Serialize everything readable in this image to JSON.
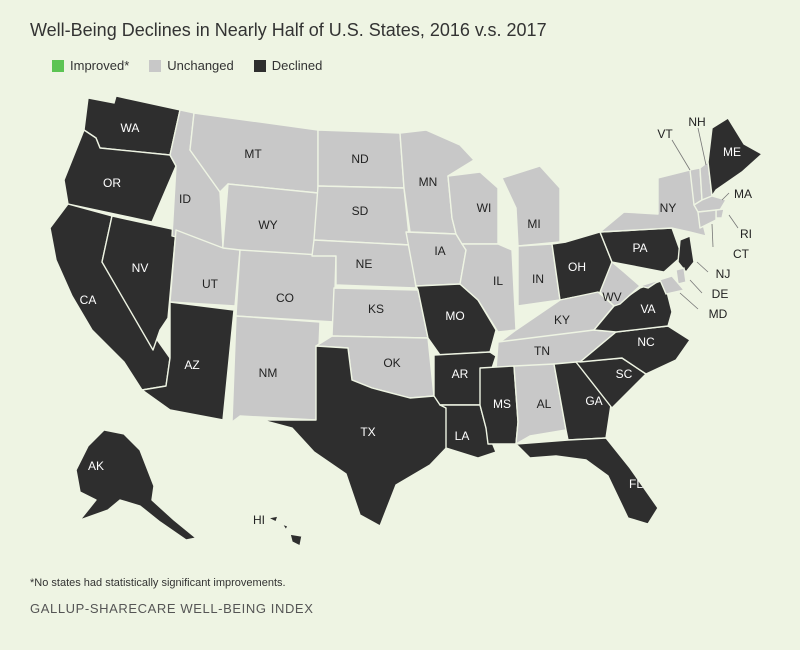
{
  "title": "Well-Being Declines in Nearly Half of U.S. States, 2016 v.s. 2017",
  "legend": [
    {
      "label": "Improved*",
      "color": "#5cc453"
    },
    {
      "label": "Unchanged",
      "color": "#c8c8c8"
    },
    {
      "label": "Declined",
      "color": "#2e2e2e"
    }
  ],
  "colors": {
    "Unchanged": "#c8c8c8",
    "Declined": "#2e2e2e",
    "background": "#eef4e3"
  },
  "states": [
    {
      "abbr": "WA",
      "status": "Declined"
    },
    {
      "abbr": "OR",
      "status": "Declined"
    },
    {
      "abbr": "CA",
      "status": "Declined"
    },
    {
      "abbr": "NV",
      "status": "Declined"
    },
    {
      "abbr": "ID",
      "status": "Unchanged"
    },
    {
      "abbr": "MT",
      "status": "Unchanged"
    },
    {
      "abbr": "WY",
      "status": "Unchanged"
    },
    {
      "abbr": "UT",
      "status": "Unchanged"
    },
    {
      "abbr": "AZ",
      "status": "Declined"
    },
    {
      "abbr": "CO",
      "status": "Unchanged"
    },
    {
      "abbr": "NM",
      "status": "Unchanged"
    },
    {
      "abbr": "ND",
      "status": "Unchanged"
    },
    {
      "abbr": "SD",
      "status": "Unchanged"
    },
    {
      "abbr": "NE",
      "status": "Unchanged"
    },
    {
      "abbr": "KS",
      "status": "Unchanged"
    },
    {
      "abbr": "OK",
      "status": "Unchanged"
    },
    {
      "abbr": "TX",
      "status": "Declined"
    },
    {
      "abbr": "MN",
      "status": "Unchanged"
    },
    {
      "abbr": "IA",
      "status": "Unchanged"
    },
    {
      "abbr": "MO",
      "status": "Declined"
    },
    {
      "abbr": "AR",
      "status": "Declined"
    },
    {
      "abbr": "LA",
      "status": "Declined"
    },
    {
      "abbr": "WI",
      "status": "Unchanged"
    },
    {
      "abbr": "IL",
      "status": "Unchanged"
    },
    {
      "abbr": "MI",
      "status": "Unchanged"
    },
    {
      "abbr": "IN",
      "status": "Unchanged"
    },
    {
      "abbr": "OH",
      "status": "Declined"
    },
    {
      "abbr": "KY",
      "status": "Unchanged"
    },
    {
      "abbr": "TN",
      "status": "Unchanged"
    },
    {
      "abbr": "MS",
      "status": "Declined"
    },
    {
      "abbr": "AL",
      "status": "Unchanged"
    },
    {
      "abbr": "GA",
      "status": "Declined"
    },
    {
      "abbr": "FL",
      "status": "Declined"
    },
    {
      "abbr": "SC",
      "status": "Declined"
    },
    {
      "abbr": "NC",
      "status": "Declined"
    },
    {
      "abbr": "VA",
      "status": "Declined"
    },
    {
      "abbr": "WV",
      "status": "Unchanged"
    },
    {
      "abbr": "PA",
      "status": "Declined"
    },
    {
      "abbr": "NY",
      "status": "Unchanged"
    },
    {
      "abbr": "VT",
      "status": "Unchanged"
    },
    {
      "abbr": "NH",
      "status": "Unchanged"
    },
    {
      "abbr": "ME",
      "status": "Declined"
    },
    {
      "abbr": "MA",
      "status": "Unchanged"
    },
    {
      "abbr": "RI",
      "status": "Unchanged"
    },
    {
      "abbr": "CT",
      "status": "Unchanged"
    },
    {
      "abbr": "NJ",
      "status": "Declined"
    },
    {
      "abbr": "DE",
      "status": "Unchanged"
    },
    {
      "abbr": "MD",
      "status": "Unchanged"
    },
    {
      "abbr": "AK",
      "status": "Declined"
    },
    {
      "abbr": "HI",
      "status": "Declined"
    }
  ],
  "footnote": "*No states had statistically significant improvements.",
  "source": "GALLUP-SHARECARE WELL-BEING INDEX"
}
